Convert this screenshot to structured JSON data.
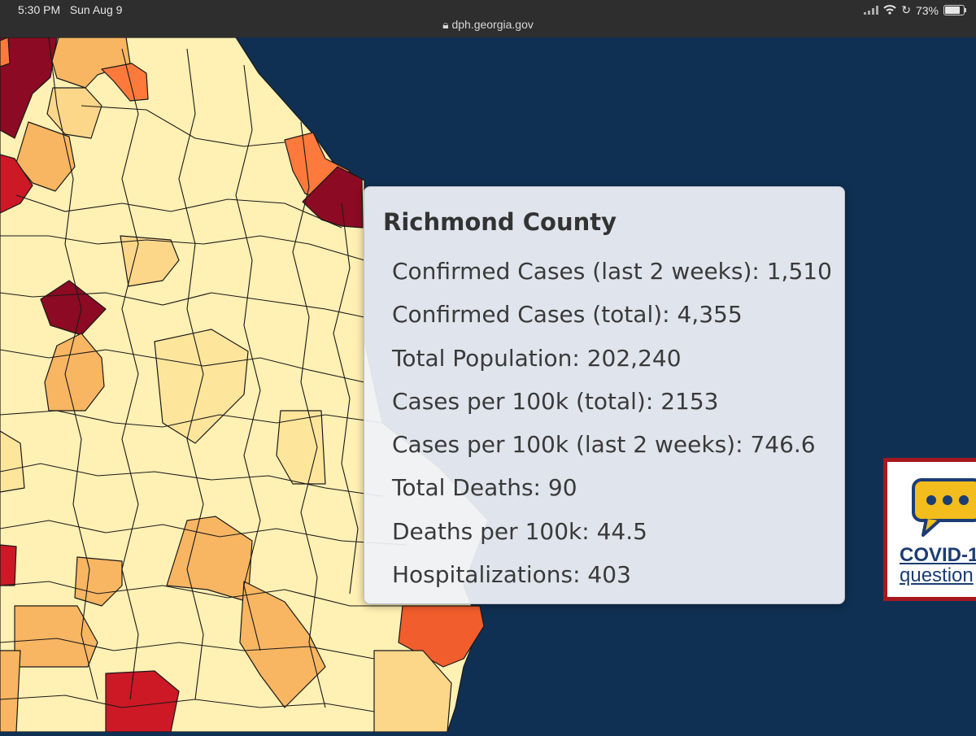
{
  "status_bar": {
    "time": "5:30 PM",
    "date": "Sun Aug 9",
    "url": "dph.georgia.gov",
    "battery": "73%",
    "battery_level": 0.73
  },
  "map": {
    "ocean_color": "#0f3052",
    "legend_colors": [
      "#ffffd4",
      "#fff0b3",
      "#fde59b",
      "#fcd78a",
      "#f8b562",
      "#fd7a3c",
      "#f15d2c",
      "#cd1826",
      "#8c0a23"
    ]
  },
  "tooltip": {
    "title": "Richmond County",
    "rows": [
      "Confirmed Cases (last 2 weeks): 1,510",
      "Confirmed Cases (total): 4,355",
      "Total Population: 202,240",
      "Cases per 100k (total): 2153",
      "Cases per 100k (last 2 weeks): 746.6",
      "Total Deaths: 90",
      "Deaths per 100k: 44.5",
      "Hospitalizations: 403"
    ]
  },
  "help_widget": {
    "line1": "COVID-1",
    "line2": "question",
    "icon": "chat-bubble-icon"
  }
}
